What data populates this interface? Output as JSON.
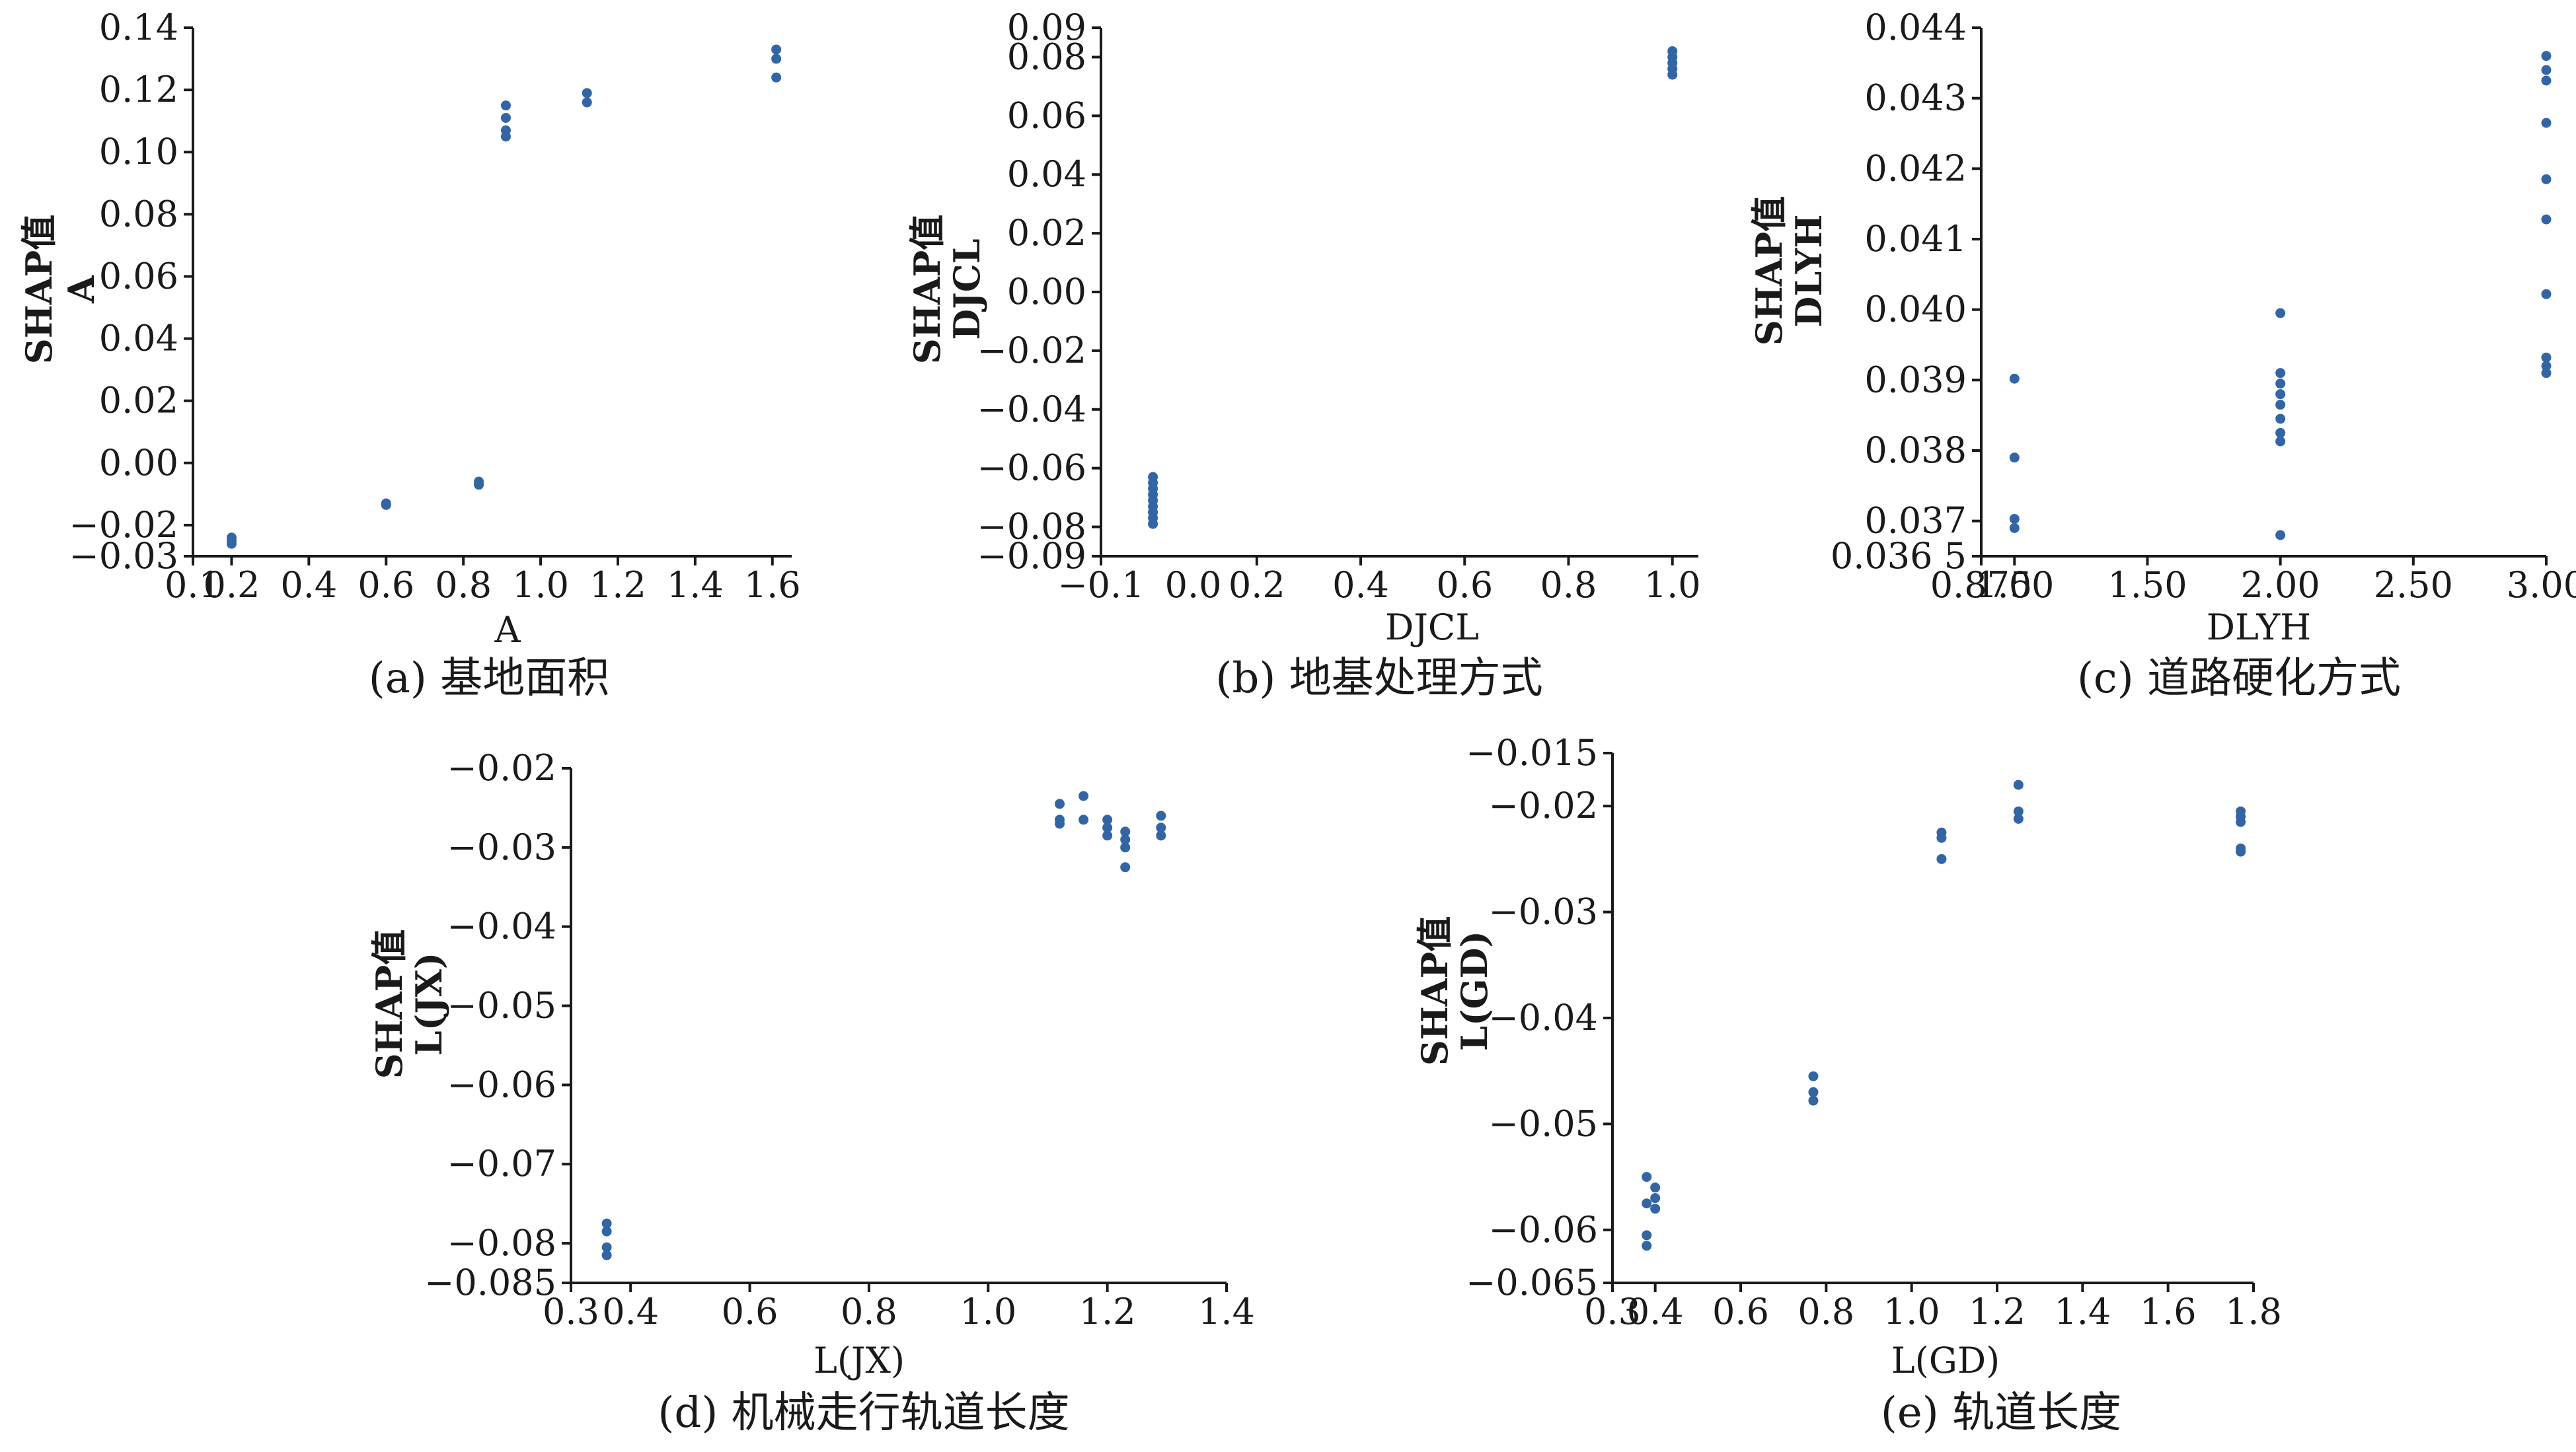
{
  "figure": {
    "colors": {
      "point": "#3265a6",
      "axis": "#1a1a1a"
    }
  },
  "chart_data": [
    {
      "type": "scatter",
      "caption": "(a) 基地面积",
      "xlabel": "A",
      "ylabel": [
        "SHAP值",
        "A"
      ],
      "xlim": [
        0.1,
        1.65
      ],
      "ylim": [
        -0.03,
        0.14
      ],
      "xticks": [
        0.1,
        0.2,
        0.4,
        0.6,
        0.8,
        1.0,
        1.2,
        1.4,
        1.6
      ],
      "xtick_labels": [
        "0.1",
        "0.2",
        "0.4",
        "0.6",
        "0.8",
        "1.0",
        "1.2",
        "1.4",
        "1.6"
      ],
      "yticks": [
        -0.03,
        -0.02,
        0.0,
        0.02,
        0.04,
        0.06,
        0.08,
        0.1,
        0.12,
        0.14
      ],
      "ytick_labels": [
        "−0.03",
        "−0.02",
        "0.00",
        "0.02",
        "0.04",
        "0.06",
        "0.08",
        "0.10",
        "0.12",
        "0.14"
      ],
      "points": [
        [
          0.2,
          -0.024
        ],
        [
          0.2,
          -0.025
        ],
        [
          0.2,
          -0.026
        ],
        [
          0.6,
          -0.013
        ],
        [
          0.6,
          -0.0135
        ],
        [
          0.84,
          -0.006
        ],
        [
          0.84,
          -0.007
        ],
        [
          0.91,
          0.115
        ],
        [
          0.91,
          0.111
        ],
        [
          0.91,
          0.107
        ],
        [
          0.91,
          0.105
        ],
        [
          1.12,
          0.119
        ],
        [
          1.12,
          0.116
        ],
        [
          1.61,
          0.133
        ],
        [
          1.61,
          0.13
        ],
        [
          1.61,
          0.124
        ]
      ]
    },
    {
      "type": "scatter",
      "caption": "(b) 地基处理方式",
      "xlabel": "DJCL",
      "ylabel": [
        "SHAP值",
        "DJCL"
      ],
      "xlim": [
        -0.1,
        1.05
      ],
      "ylim": [
        -0.09,
        0.09
      ],
      "xticks": [
        -0.1,
        0.2,
        0.4,
        0.6,
        0.8,
        1.0
      ],
      "xtick_labels": [
        "−0.1",
        "0.2",
        "0.4",
        "0.6",
        "0.8",
        "1.0"
      ],
      "yticks": [
        -0.09,
        -0.08,
        -0.06,
        -0.04,
        -0.02,
        0.0,
        0.02,
        0.04,
        0.06,
        0.08,
        0.09
      ],
      "ytick_labels": [
        "−0.09",
        "−0.08",
        "−0.06",
        "−0.04",
        "−0.02",
        "0.00",
        "0.02",
        "0.04",
        "0.06",
        "0.08",
        "0.09"
      ],
      "extra_xtick_labels": [
        {
          "x": 0.0,
          "label": "0.0"
        }
      ],
      "points": [
        [
          0.0,
          -0.063
        ],
        [
          0.0,
          -0.065
        ],
        [
          0.0,
          -0.067
        ],
        [
          0.0,
          -0.069
        ],
        [
          0.0,
          -0.071
        ],
        [
          0.0,
          -0.073
        ],
        [
          0.0,
          -0.075
        ],
        [
          0.0,
          -0.077
        ],
        [
          0.0,
          -0.079
        ],
        [
          1.0,
          0.082
        ],
        [
          1.0,
          0.08
        ],
        [
          1.0,
          0.078
        ],
        [
          1.0,
          0.076
        ],
        [
          1.0,
          0.074
        ]
      ]
    },
    {
      "type": "scatter",
      "caption": "(c) 道路硬化方式",
      "xlabel": "DLYH",
      "ylabel": [
        "SHAP值",
        "DLYH"
      ],
      "xlim": [
        0.875,
        3.0
      ],
      "ylim": [
        0.0365,
        0.044
      ],
      "xticks": [
        0.875,
        1.0,
        1.5,
        2.0,
        2.5,
        3.0
      ],
      "xtick_labels": [
        "0.875",
        "1.00",
        "1.50",
        "2.00",
        "2.50",
        "3.00"
      ],
      "yticks": [
        0.0365,
        0.037,
        0.038,
        0.039,
        0.04,
        0.041,
        0.042,
        0.043,
        0.044
      ],
      "ytick_labels": [
        "0.036 5",
        "0.037",
        "0.038",
        "0.039",
        "0.040",
        "0.041",
        "0.042",
        "0.043",
        "0.044"
      ],
      "points": [
        [
          1.0,
          0.03902
        ],
        [
          1.0,
          0.0379
        ],
        [
          1.0,
          0.03703
        ],
        [
          1.0,
          0.0369
        ],
        [
          2.0,
          0.03995
        ],
        [
          2.0,
          0.0391
        ],
        [
          2.0,
          0.03895
        ],
        [
          2.0,
          0.0388
        ],
        [
          2.0,
          0.03865
        ],
        [
          2.0,
          0.03845
        ],
        [
          2.0,
          0.03825
        ],
        [
          2.0,
          0.03813
        ],
        [
          2.0,
          0.0368
        ],
        [
          3.0,
          0.0436
        ],
        [
          3.0,
          0.0434
        ],
        [
          3.0,
          0.04325
        ],
        [
          3.0,
          0.04265
        ],
        [
          3.0,
          0.04185
        ],
        [
          3.0,
          0.04128
        ],
        [
          3.0,
          0.04022
        ],
        [
          3.0,
          0.03932
        ],
        [
          3.0,
          0.0392
        ],
        [
          3.0,
          0.0391
        ]
      ]
    },
    {
      "type": "scatter",
      "caption": "(d) 机械走行轨道长度",
      "xlabel": "L(JX)",
      "ylabel": [
        "SHAP值",
        "L(JX)"
      ],
      "xlim": [
        0.3,
        1.4
      ],
      "ylim": [
        -0.085,
        -0.02
      ],
      "xticks": [
        0.3,
        0.4,
        0.6,
        0.8,
        1.0,
        1.2,
        1.4
      ],
      "xtick_labels": [
        "0.3",
        "0.4",
        "0.6",
        "0.8",
        "1.0",
        "1.2",
        "1.4"
      ],
      "yticks": [
        -0.085,
        -0.08,
        -0.07,
        -0.06,
        -0.05,
        -0.04,
        -0.03,
        -0.02
      ],
      "ytick_labels": [
        "−0.085",
        "−0.08",
        "−0.07",
        "−0.06",
        "−0.05",
        "−0.04",
        "−0.03",
        "−0.02"
      ],
      "points": [
        [
          0.36,
          -0.0775
        ],
        [
          0.36,
          -0.0785
        ],
        [
          0.36,
          -0.0805
        ],
        [
          0.36,
          -0.0815
        ],
        [
          1.12,
          -0.0245
        ],
        [
          1.12,
          -0.0265
        ],
        [
          1.12,
          -0.027
        ],
        [
          1.16,
          -0.0235
        ],
        [
          1.16,
          -0.0265
        ],
        [
          1.2,
          -0.0265
        ],
        [
          1.2,
          -0.0275
        ],
        [
          1.2,
          -0.0285
        ],
        [
          1.23,
          -0.028
        ],
        [
          1.23,
          -0.029
        ],
        [
          1.23,
          -0.03
        ],
        [
          1.23,
          -0.0325
        ],
        [
          1.29,
          -0.026
        ],
        [
          1.29,
          -0.0275
        ],
        [
          1.29,
          -0.0285
        ]
      ]
    },
    {
      "type": "scatter",
      "caption": "(e) 轨道长度",
      "xlabel": "L(GD)",
      "ylabel": [
        "SHAP值",
        "L(GD)"
      ],
      "xlim": [
        0.3,
        1.8
      ],
      "ylim": [
        -0.065,
        -0.015
      ],
      "xticks": [
        0.3,
        0.4,
        0.6,
        0.8,
        1.0,
        1.2,
        1.4,
        1.6,
        1.8
      ],
      "xtick_labels": [
        "0.3",
        "0.4",
        "0.6",
        "0.8",
        "1.0",
        "1.2",
        "1.4",
        "1.6",
        "1.8"
      ],
      "yticks": [
        -0.065,
        -0.06,
        -0.05,
        -0.04,
        -0.03,
        -0.02,
        -0.015
      ],
      "ytick_labels": [
        "−0.065",
        "−0.06",
        "−0.05",
        "−0.04",
        "−0.03",
        "−0.02",
        "−0.015"
      ],
      "points": [
        [
          0.38,
          -0.055
        ],
        [
          0.38,
          -0.0575
        ],
        [
          0.38,
          -0.0605
        ],
        [
          0.38,
          -0.0615
        ],
        [
          0.4,
          -0.056
        ],
        [
          0.4,
          -0.057
        ],
        [
          0.4,
          -0.058
        ],
        [
          0.77,
          -0.0455
        ],
        [
          0.77,
          -0.047
        ],
        [
          0.77,
          -0.0478
        ],
        [
          1.07,
          -0.0225
        ],
        [
          1.07,
          -0.023
        ],
        [
          1.07,
          -0.025
        ],
        [
          1.25,
          -0.018
        ],
        [
          1.25,
          -0.0205
        ],
        [
          1.25,
          -0.0212
        ],
        [
          1.77,
          -0.0205
        ],
        [
          1.77,
          -0.021
        ],
        [
          1.77,
          -0.0215
        ],
        [
          1.77,
          -0.024
        ],
        [
          1.77,
          -0.0243
        ]
      ]
    }
  ]
}
